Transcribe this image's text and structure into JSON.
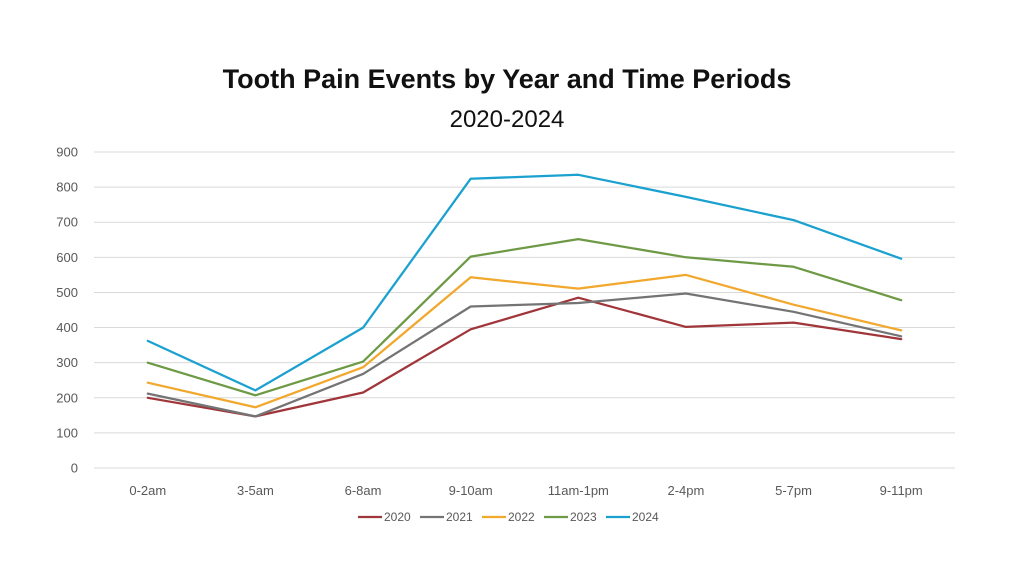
{
  "chart_data": {
    "type": "line",
    "title": "Tooth Pain Events by Year and Time Periods",
    "subtitle": "2020-2024",
    "xlabel": "",
    "ylabel": "",
    "categories": [
      "0-2am",
      "3-5am",
      "6-8am",
      "9-10am",
      "11am-1pm",
      "2-4pm",
      "5-7pm",
      "9-11pm"
    ],
    "ylim": [
      0,
      900
    ],
    "yticks": [
      "0",
      "100",
      "200",
      "300",
      "400",
      "500",
      "600",
      "700",
      "800",
      "900"
    ],
    "grid": true,
    "legend_position": "bottom",
    "series": [
      {
        "name": "2020",
        "color": "#A0353A",
        "values": [
          200,
          147,
          215,
          395,
          485,
          402,
          414,
          367
        ]
      },
      {
        "name": "2021",
        "color": "#747474",
        "values": [
          212,
          147,
          268,
          460,
          470,
          497,
          445,
          375
        ]
      },
      {
        "name": "2022",
        "color": "#F2A72D",
        "values": [
          243,
          173,
          287,
          543,
          511,
          550,
          465,
          392
        ]
      },
      {
        "name": "2023",
        "color": "#6E9A46",
        "values": [
          300,
          207,
          303,
          602,
          652,
          600,
          573,
          478
        ]
      },
      {
        "name": "2024",
        "color": "#1BA1CF",
        "values": [
          362,
          221,
          400,
          824,
          835,
          772,
          706,
          596
        ]
      }
    ]
  }
}
